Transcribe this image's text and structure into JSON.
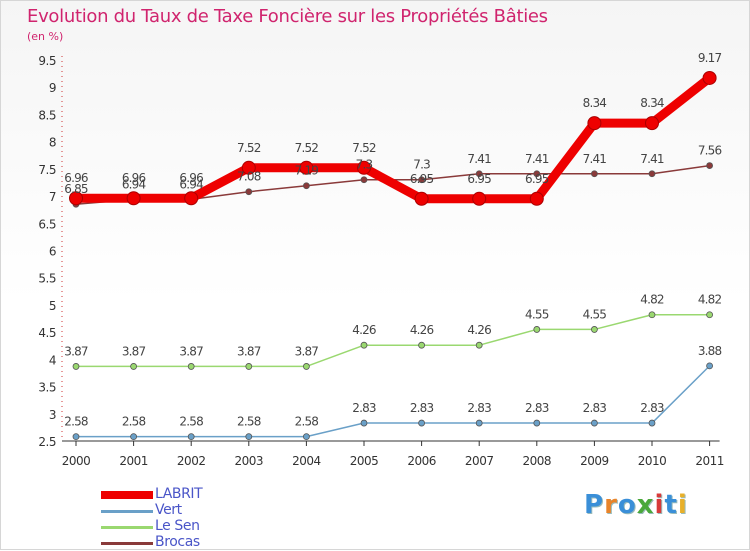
{
  "title": "Evolution du Taux de Taxe Foncière sur les Propriétés Bâties",
  "unit": "(en %)",
  "logo": {
    "letters": [
      "P",
      "r",
      "o",
      "x",
      "i",
      "t",
      "i"
    ],
    "colors": [
      "#3a8fd8",
      "#e8842a",
      "#3a8fd8",
      "#4aa83a",
      "#d83a3a",
      "#3a8fd8",
      "#e8b02a"
    ]
  },
  "chart_data": {
    "type": "line",
    "title": "Evolution du Taux de Taxe Foncière sur les Propriétés Bâties",
    "ylabel": "(en %)",
    "xlabel": "",
    "categories": [
      "2000",
      "2001",
      "2002",
      "2003",
      "2004",
      "2005",
      "2006",
      "2007",
      "2008",
      "2009",
      "2010",
      "2011"
    ],
    "ylim": [
      2.5,
      9.5
    ],
    "yticks": [
      "2.5",
      "3",
      "3.5",
      "4",
      "4.5",
      "5",
      "5.5",
      "6",
      "6.5",
      "7",
      "7.5",
      "8",
      "8.5",
      "9",
      "9.5"
    ],
    "series": [
      {
        "name": "LABRIT",
        "color": "#ee0000",
        "values": [
          6.96,
          6.96,
          6.96,
          7.52,
          7.52,
          7.52,
          6.95,
          6.95,
          6.95,
          8.34,
          8.34,
          9.17
        ],
        "labels": [
          "6.96",
          "6.96",
          "6.96",
          "7.52",
          "7.52",
          "7.52",
          "6.95",
          "6.95",
          "6.95",
          "8.34",
          "8.34",
          "9.17"
        ]
      },
      {
        "name": "Vert",
        "color": "#6aa0c8",
        "values": [
          2.58,
          2.58,
          2.58,
          2.58,
          2.58,
          2.83,
          2.83,
          2.83,
          2.83,
          2.83,
          2.83,
          3.88
        ],
        "labels": [
          "2.58",
          "2.58",
          "2.58",
          "2.58",
          "2.58",
          "2.83",
          "2.83",
          "2.83",
          "2.83",
          "2.83",
          "2.83",
          "3.88"
        ]
      },
      {
        "name": "Le Sen",
        "color": "#9ad870",
        "values": [
          3.87,
          3.87,
          3.87,
          3.87,
          3.87,
          4.26,
          4.26,
          4.26,
          4.55,
          4.55,
          4.82,
          4.82
        ],
        "labels": [
          "3.87",
          "3.87",
          "3.87",
          "3.87",
          "3.87",
          "4.26",
          "4.26",
          "4.26",
          "4.55",
          "4.55",
          "4.82",
          "4.82"
        ]
      },
      {
        "name": "Brocas",
        "color": "#8a3a3a",
        "values": [
          6.85,
          6.94,
          6.94,
          7.08,
          7.19,
          7.3,
          7.3,
          7.41,
          7.41,
          7.41,
          7.41,
          7.56
        ],
        "labels": [
          "6.85",
          "6.94",
          "6.94",
          "7.08",
          "7.19",
          "7.3",
          "7.3",
          "7.41",
          "7.41",
          "7.41",
          "7.41",
          "7.56"
        ]
      }
    ]
  }
}
